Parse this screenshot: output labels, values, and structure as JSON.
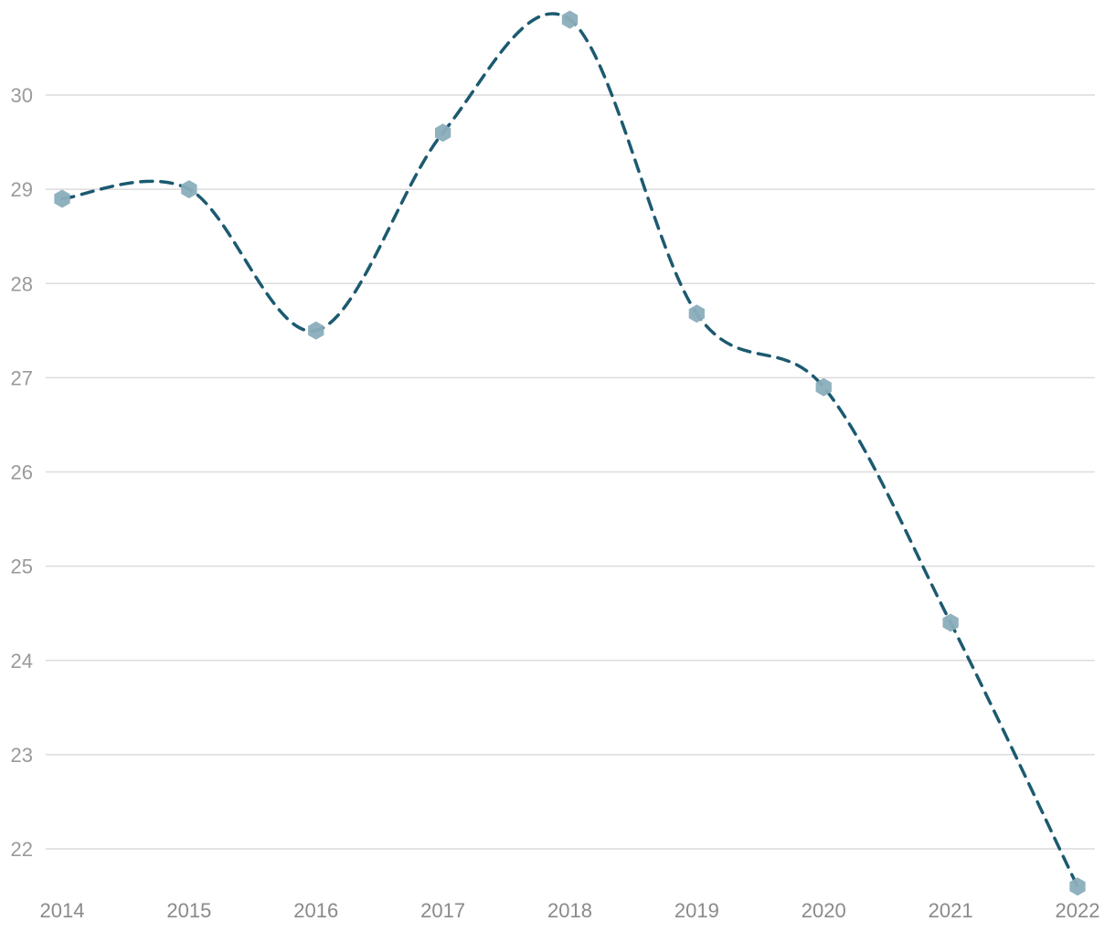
{
  "chart_data": {
    "type": "line",
    "title": "",
    "xlabel": "",
    "ylabel": "",
    "x": [
      "2014",
      "2015",
      "2016",
      "2017",
      "2018",
      "2019",
      "2020",
      "2021",
      "2022"
    ],
    "series": [
      {
        "values": [
          28.9,
          29.0,
          27.5,
          29.6,
          30.8,
          27.68,
          26.9,
          24.4,
          21.6
        ]
      }
    ],
    "y_ticks": [
      "22",
      "23",
      "24",
      "25",
      "26",
      "27",
      "28",
      "29",
      "30"
    ],
    "ylim": [
      21.6,
      30.8
    ],
    "grid": "horizontal",
    "line_style": "dashed, smooth",
    "marker": "hexagon",
    "colors": {
      "line": "#1c5a70",
      "marker": "#8aaebb",
      "grid": "#dcdcdc",
      "tick_label": "#999999"
    }
  }
}
